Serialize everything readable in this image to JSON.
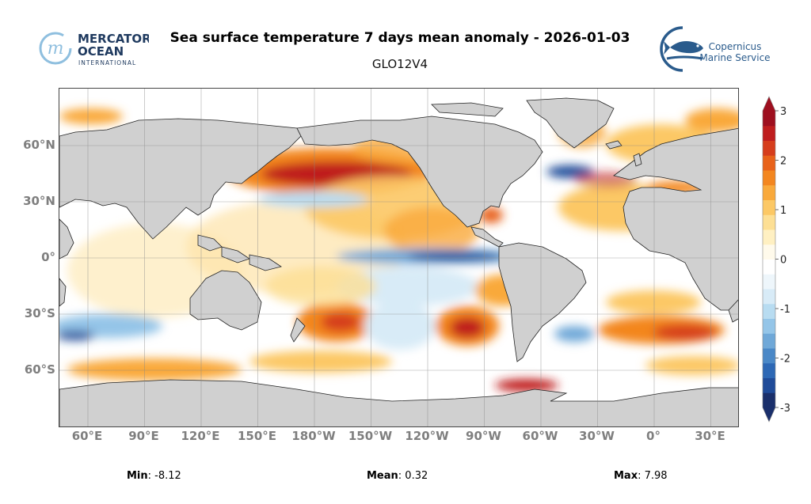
{
  "header": {
    "title": "Sea surface temperature 7 days mean anomaly - 2026-01-03",
    "subtitle": "GLO12V4"
  },
  "logos": {
    "left": {
      "line1": "MERCATOR",
      "line2": "OCEAN",
      "line3": "INTERNATIONAL",
      "color": "#1f3a5f",
      "accent": "#7fb3d5"
    },
    "right": {
      "line1": "Copernicus",
      "line2": "Marine Service",
      "color": "#2a5b8c"
    }
  },
  "map": {
    "land_color": "#d0d0d0",
    "ocean_base_color": "#ffffff",
    "lon_labels": [
      "60°E",
      "90°E",
      "120°E",
      "150°E",
      "180°W",
      "150°W",
      "120°W",
      "90°W",
      "60°W",
      "30°W",
      "0°",
      "30°E"
    ],
    "lat_labels": [
      "60°N",
      "30°N",
      "0°",
      "30°S",
      "60°S"
    ]
  },
  "colorbar": {
    "ticks": [
      "3",
      "2",
      "1",
      "0",
      "-1",
      "-2",
      "-3"
    ],
    "range": [
      -3,
      3
    ],
    "colors": [
      "#1a2f6b",
      "#1f4b99",
      "#2d68b5",
      "#4a88c7",
      "#6fa8d8",
      "#94c5e8",
      "#b8dcf1",
      "#d8ebf7",
      "#eef6fb",
      "#ffffff",
      "#fffaeb",
      "#fff0c2",
      "#fddf94",
      "#fcc865",
      "#f9a93b",
      "#f3861f",
      "#e8621a",
      "#d63d1c",
      "#bf1d1e",
      "#9e0f1f"
    ]
  },
  "stats": {
    "min_label": "Min",
    "min_value": ": -8.12",
    "mean_label": "Mean",
    "mean_value": ": 0.32",
    "max_label": "Max",
    "max_value": ": 7.98"
  }
}
